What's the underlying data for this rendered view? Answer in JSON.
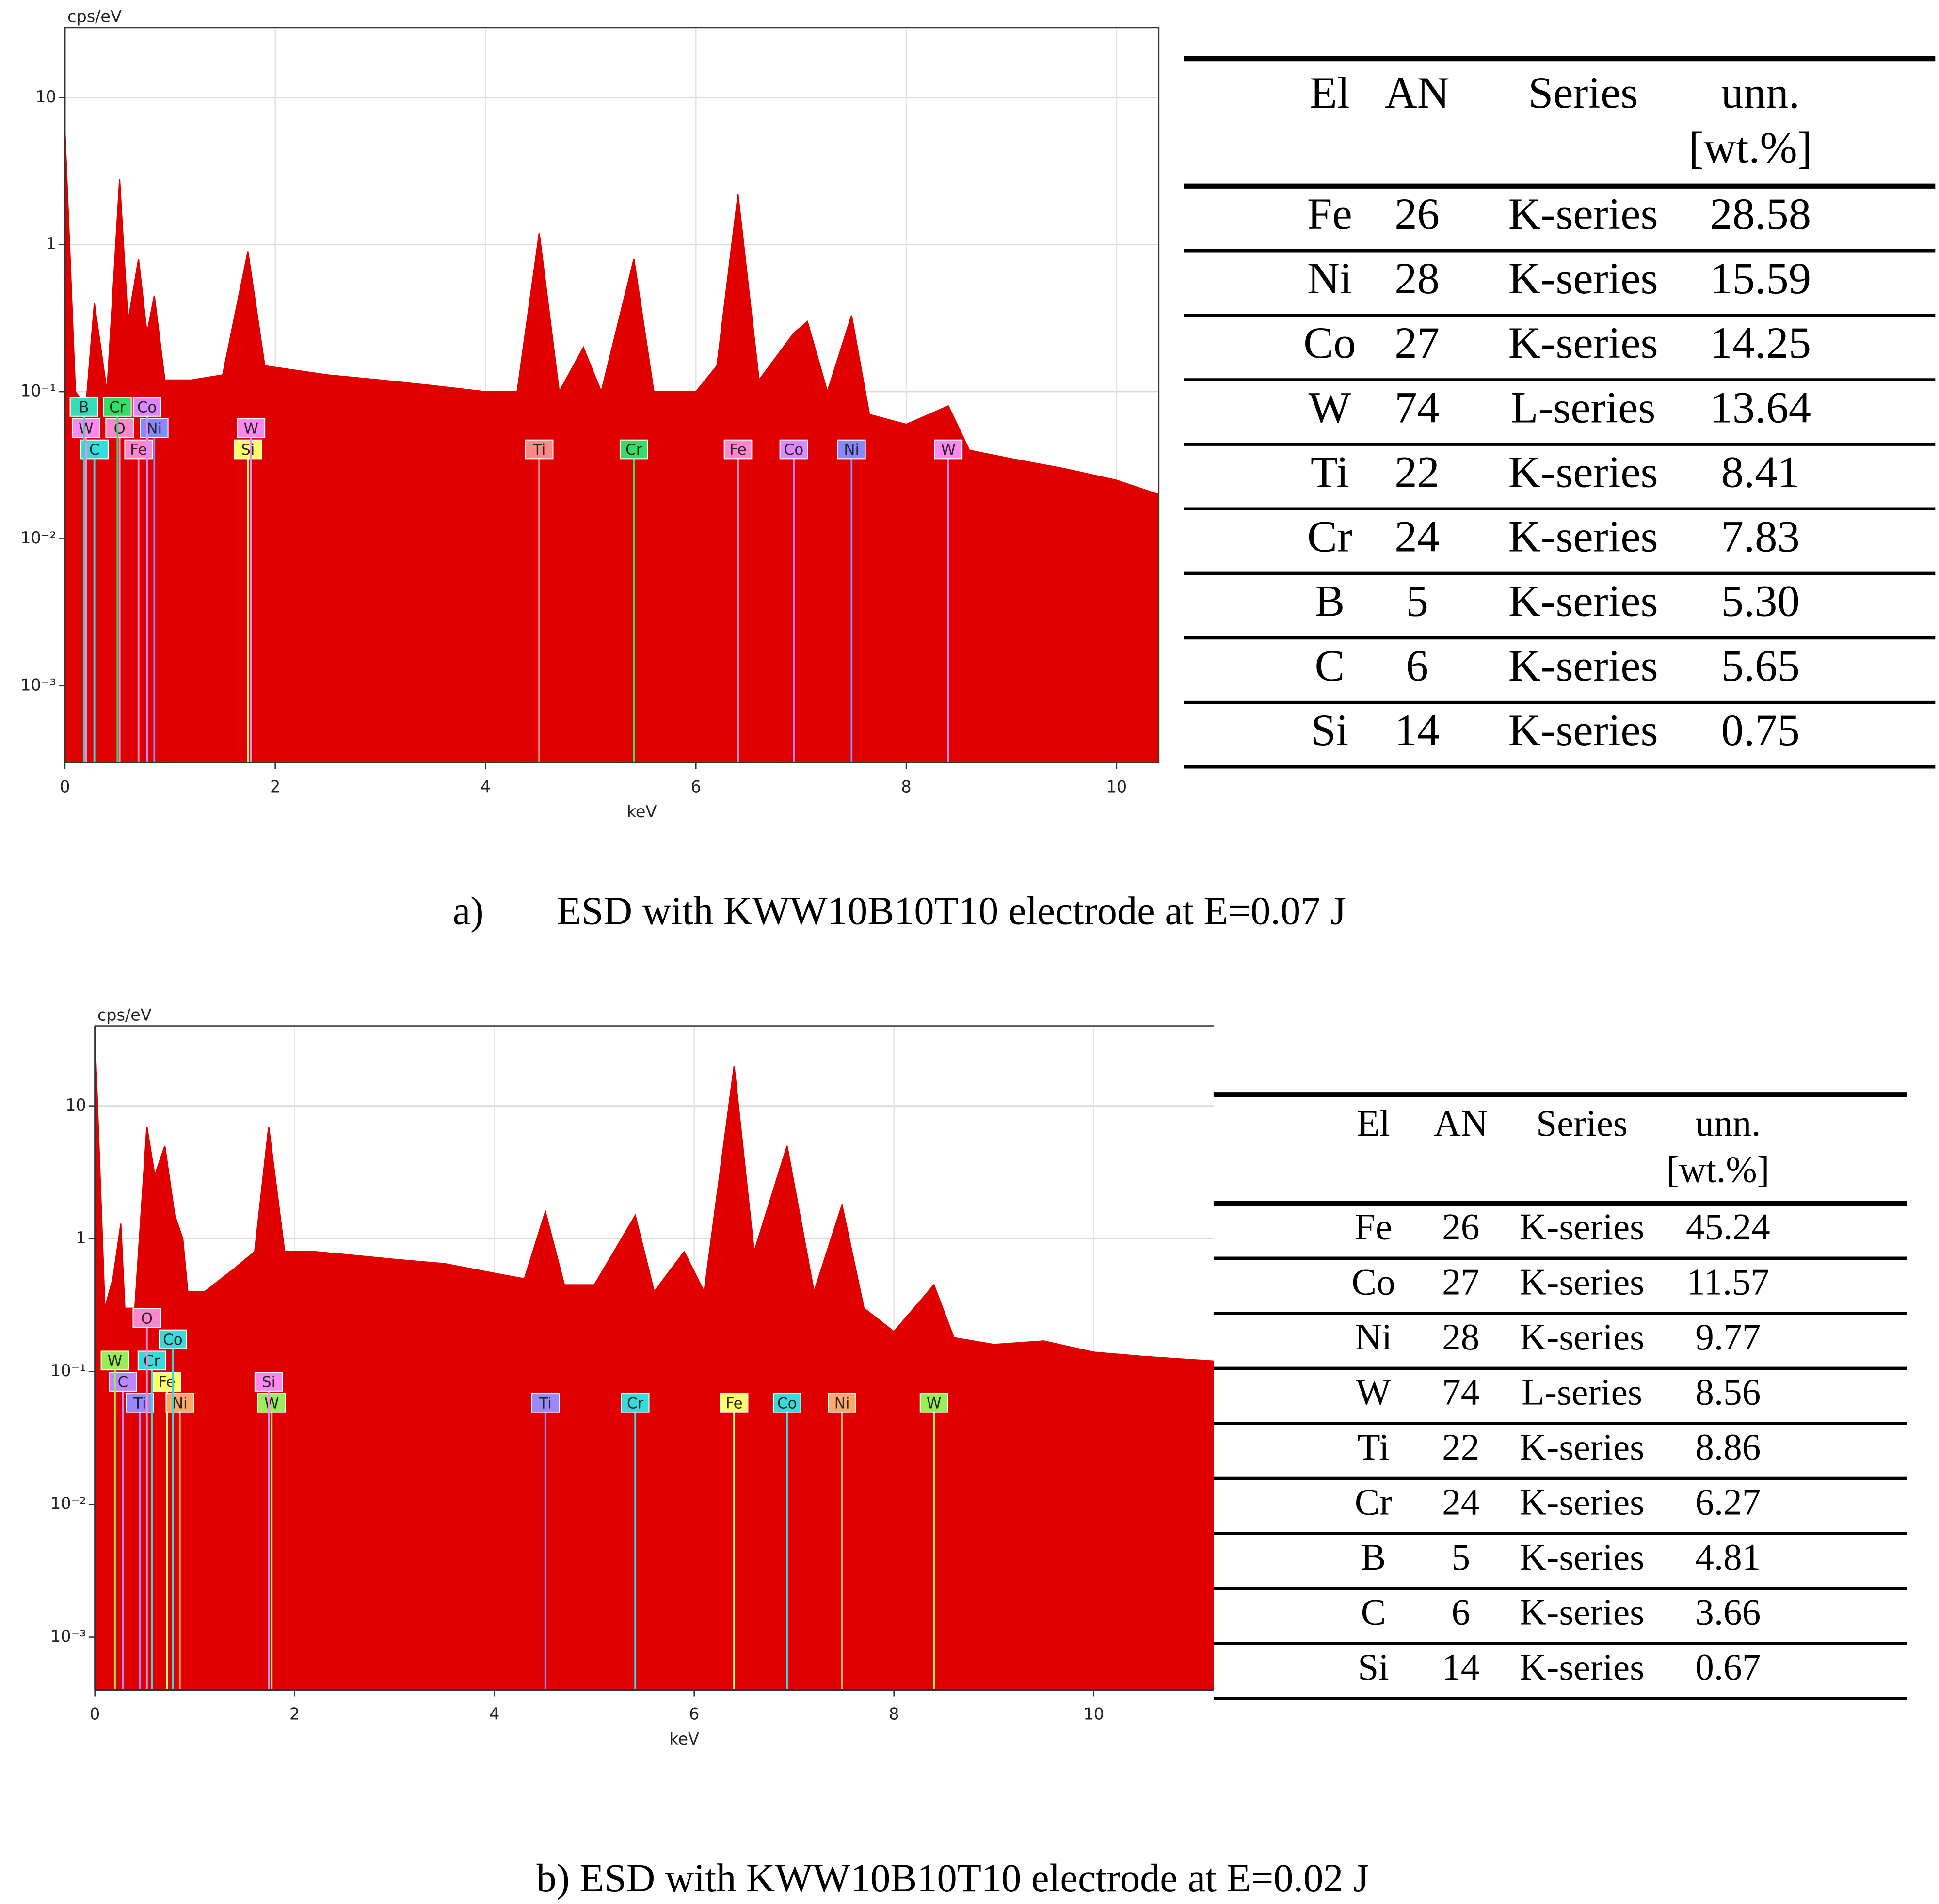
{
  "chart_data": [
    {
      "type": "area",
      "log_y": true,
      "grid": true,
      "y_label": "cps/eV",
      "x_label": "keV",
      "color": "#e00000",
      "xlim": [
        0,
        10.4
      ],
      "xticks": [
        0,
        2,
        4,
        6,
        8,
        10
      ],
      "ylim": [
        0.0003,
        30
      ],
      "yticks": [
        {
          "value": 0.001,
          "label": "10⁻³"
        },
        {
          "value": 0.01,
          "label": "10⁻²"
        },
        {
          "value": 0.1,
          "label": "10⁻¹"
        },
        1,
        10
      ],
      "x": [
        0,
        0.1,
        0.2,
        0.28,
        0.4,
        0.52,
        0.6,
        0.7,
        0.78,
        0.85,
        0.95,
        1.2,
        1.5,
        1.74,
        1.9,
        2.5,
        3,
        3.5,
        4,
        4.3,
        4.51,
        4.7,
        4.93,
        5.1,
        5.41,
        5.6,
        6,
        6.2,
        6.4,
        6.6,
        6.93,
        7.06,
        7.25,
        7.48,
        7.65,
        8,
        8.4,
        8.6,
        9,
        9.5,
        10,
        10.4
      ],
      "values": [
        6,
        0.1,
        0.08,
        0.4,
        0.1,
        2.8,
        0.3,
        0.8,
        0.25,
        0.45,
        0.12,
        0.12,
        0.13,
        0.9,
        0.15,
        0.13,
        0.12,
        0.11,
        0.1,
        0.1,
        1.2,
        0.1,
        0.2,
        0.1,
        0.8,
        0.1,
        0.1,
        0.15,
        2.2,
        0.12,
        0.25,
        0.3,
        0.1,
        0.33,
        0.07,
        0.06,
        0.08,
        0.04,
        0.035,
        0.03,
        0.025,
        0.02
      ],
      "markers": [
        {
          "label": "C",
          "x": 0.28,
          "color": "#33dddd"
        },
        {
          "label": "Fe",
          "x": 0.7,
          "color": "#ff88cc"
        },
        {
          "label": "Si",
          "x": 1.74,
          "color": "#ffff66"
        },
        {
          "label": "Ti",
          "x": 4.51,
          "color": "#ff8888"
        },
        {
          "label": "Cr",
          "x": 5.41,
          "color": "#33dd66"
        },
        {
          "label": "Fe",
          "x": 6.4,
          "color": "#ff88cc"
        },
        {
          "label": "Co",
          "x": 6.93,
          "color": "#dd88ff"
        },
        {
          "label": "Ni",
          "x": 7.48,
          "color": "#8888ff"
        },
        {
          "label": "W",
          "x": 8.4,
          "color": "#ff88ee"
        },
        {
          "label": "O",
          "x": 0.52,
          "color": "#ff88cc"
        },
        {
          "label": "Ni",
          "x": 0.85,
          "color": "#8888ff"
        },
        {
          "label": "W",
          "x": 1.77,
          "color": "#ff88ee"
        },
        {
          "label": "W",
          "x": 0.2,
          "color": "#ff88ee"
        },
        {
          "label": "Cr",
          "x": 0.5,
          "color": "#33dd66"
        },
        {
          "label": "Co",
          "x": 0.78,
          "color": "#dd88ff"
        },
        {
          "label": "B",
          "x": 0.18,
          "color": "#33ddbb"
        }
      ]
    },
    {
      "type": "area",
      "log_y": true,
      "grid": true,
      "y_label": "cps/eV",
      "x_label": "keV",
      "color": "#e00000",
      "xlim": [
        0,
        11.2
      ],
      "xticks": [
        0,
        2,
        4,
        6,
        8,
        10
      ],
      "ylim": [
        0.0004,
        40
      ],
      "yticks": [
        {
          "value": 0.001,
          "label": "10⁻³"
        },
        {
          "value": 0.01,
          "label": "10⁻²"
        },
        {
          "value": 0.1,
          "label": "10⁻¹"
        },
        1,
        10
      ],
      "x": [
        0,
        0.1,
        0.18,
        0.26,
        0.3,
        0.4,
        0.52,
        0.6,
        0.7,
        0.8,
        0.88,
        0.93,
        1.1,
        1.4,
        1.6,
        1.74,
        1.9,
        2.2,
        2.6,
        3,
        3.5,
        4,
        4.3,
        4.51,
        4.7,
        5,
        5.41,
        5.6,
        5.9,
        6.1,
        6.4,
        6.6,
        6.93,
        7.2,
        7.48,
        7.7,
        8,
        8.4,
        8.6,
        9,
        9.5,
        10,
        10.5,
        11.2
      ],
      "values": [
        35,
        0.3,
        0.5,
        1.3,
        0.3,
        0.3,
        7,
        3,
        5,
        1.5,
        1,
        0.4,
        0.4,
        0.6,
        0.8,
        7,
        0.8,
        0.8,
        0.75,
        0.7,
        0.65,
        0.55,
        0.5,
        1.6,
        0.45,
        0.45,
        1.5,
        0.4,
        0.8,
        0.4,
        20,
        0.8,
        5,
        0.4,
        1.8,
        0.3,
        0.2,
        0.45,
        0.18,
        0.16,
        0.17,
        0.14,
        0.13,
        0.12
      ],
      "markers": [
        {
          "label": "Ti",
          "x": 0.45,
          "color": "#9988ff"
        },
        {
          "label": "Fe",
          "x": 0.72,
          "color": "#ffff66"
        },
        {
          "label": "W",
          "x": 1.77,
          "color": "#99ee55"
        },
        {
          "label": "Ti",
          "x": 4.51,
          "color": "#9988ff"
        },
        {
          "label": "Cr",
          "x": 5.41,
          "color": "#33dddd"
        },
        {
          "label": "Fe",
          "x": 6.4,
          "color": "#ffff66"
        },
        {
          "label": "Co",
          "x": 6.93,
          "color": "#33dddd"
        },
        {
          "label": "Ni",
          "x": 7.48,
          "color": "#ffaa66"
        },
        {
          "label": "W",
          "x": 8.4,
          "color": "#99ee55"
        },
        {
          "label": "Cr",
          "x": 0.57,
          "color": "#33dddd"
        },
        {
          "label": "Ni",
          "x": 0.85,
          "color": "#ffaa66"
        },
        {
          "label": "Si",
          "x": 1.74,
          "color": "#ff88ee"
        },
        {
          "label": "C",
          "x": 0.28,
          "color": "#bb88ff"
        },
        {
          "label": "Co",
          "x": 0.78,
          "color": "#33dddd"
        },
        {
          "label": "W",
          "x": 0.2,
          "color": "#99ee55"
        },
        {
          "label": "O",
          "x": 0.52,
          "color": "#ff88cc"
        }
      ]
    }
  ],
  "tables": [
    {
      "header": [
        "El",
        "AN",
        "Series",
        "unn."
      ],
      "header_units": "[wt.%]",
      "rows": [
        [
          "Fe",
          "26",
          "K-series",
          "28.58"
        ],
        [
          "Ni",
          "28",
          "K-series",
          "15.59"
        ],
        [
          "Co",
          "27",
          "K-series",
          "14.25"
        ],
        [
          "W",
          "74",
          "L-series",
          "13.64"
        ],
        [
          "Ti",
          "22",
          "K-series",
          "8.41"
        ],
        [
          "Cr",
          "24",
          "K-series",
          "7.83"
        ],
        [
          "B",
          "5",
          "K-series",
          "5.30"
        ],
        [
          "C",
          "6",
          "K-series",
          "5.65"
        ],
        [
          "Si",
          "14",
          "K-series",
          "0.75"
        ]
      ]
    },
    {
      "header": [
        "El",
        "AN",
        "Series",
        "unn."
      ],
      "header_units": "[wt.%]",
      "rows": [
        [
          "Fe",
          "26",
          "K-series",
          "45.24"
        ],
        [
          "Co",
          "27",
          "K-series",
          "11.57"
        ],
        [
          "Ni",
          "28",
          "K-series",
          "9.77"
        ],
        [
          "W",
          "74",
          "L-series",
          "8.56"
        ],
        [
          "Ti",
          "22",
          "K-series",
          "8.86"
        ],
        [
          "Cr",
          "24",
          "K-series",
          "6.27"
        ],
        [
          "B",
          "5",
          "K-series",
          "4.81"
        ],
        [
          "C",
          "6",
          "K-series",
          "3.66"
        ],
        [
          "Si",
          "14",
          "K-series",
          "0.67"
        ]
      ]
    }
  ],
  "captions": [
    {
      "label": "a)",
      "text": "ESD with KWW10B10T10 electrode at E=0.07 J"
    },
    {
      "text": "b) ESD with KWW10B10T10 electrode at E=0.02 J"
    }
  ]
}
